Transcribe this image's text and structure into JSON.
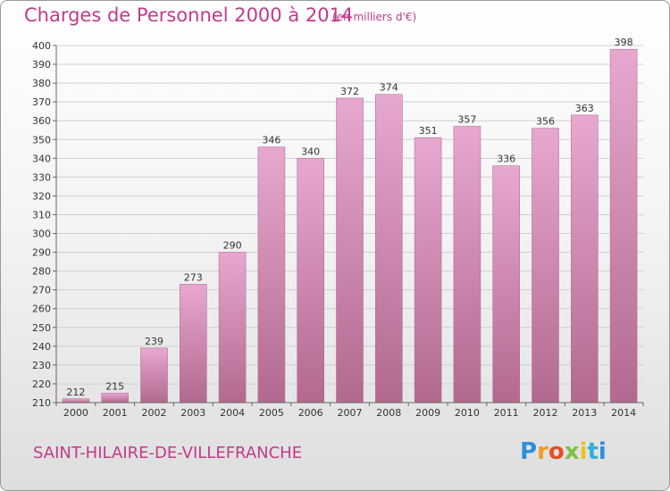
{
  "header": {
    "title": "Charges de Personnel 2000 à 2014",
    "subtitle": "(en milliers d'€)"
  },
  "footer": {
    "commune": "SAINT-HILAIRE-DE-VILLEFRANCHE",
    "logo_text": "Proxiti"
  },
  "colors": {
    "bar_top": "#e7a8d0",
    "bar_bottom": "#b2698f",
    "text_accent": "#c23a8a",
    "grid": "#cfcfcf"
  },
  "chart_data": {
    "type": "bar",
    "title": "Charges de Personnel 2000 à 2014",
    "subtitle": "(en milliers d'€)",
    "categories": [
      "2000",
      "2001",
      "2002",
      "2003",
      "2004",
      "2005",
      "2006",
      "2007",
      "2008",
      "2009",
      "2010",
      "2011",
      "2012",
      "2013",
      "2014"
    ],
    "values": [
      212,
      215,
      239,
      273,
      290,
      346,
      340,
      372,
      374,
      351,
      357,
      336,
      356,
      363,
      398
    ],
    "ylim": [
      210,
      400
    ],
    "yticks": [
      210,
      220,
      230,
      240,
      250,
      260,
      270,
      280,
      290,
      300,
      310,
      320,
      330,
      340,
      350,
      360,
      370,
      380,
      390,
      400
    ],
    "grid": true,
    "data_labels": true
  }
}
